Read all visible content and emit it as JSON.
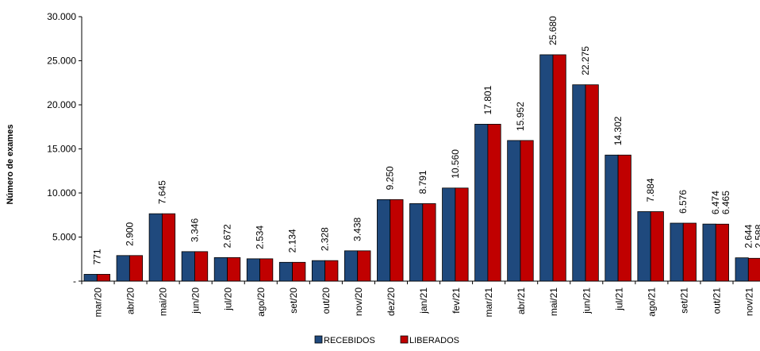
{
  "chart_data": {
    "type": "bar",
    "title": "",
    "xlabel": "",
    "ylabel": "Número de exames",
    "ylim": [
      0,
      30000
    ],
    "yticks": [
      0,
      5000,
      10000,
      15000,
      20000,
      25000,
      30000
    ],
    "ytick_labels": [
      "-",
      "5.000",
      "10.000",
      "15.000",
      "20.000",
      "25.000",
      "30.000"
    ],
    "grid": false,
    "legend_position": "bottom",
    "categories": [
      "mar/20",
      "abr/20",
      "mai/20",
      "jun/20",
      "jul/20",
      "ago/20",
      "set/20",
      "out/20",
      "nov/20",
      "dez/20",
      "jan/21",
      "fev/21",
      "mar/21",
      "abr/21",
      "mai/21",
      "jun/21",
      "jul/21",
      "ago/21",
      "set/21",
      "out/21",
      "nov/21"
    ],
    "series": [
      {
        "name": "RECEBIDOS",
        "color": "#1F497D",
        "values": [
          771,
          2900,
          7645,
          3346,
          2672,
          2534,
          2134,
          2328,
          3438,
          9250,
          8791,
          10560,
          17801,
          15952,
          25680,
          22275,
          14302,
          7884,
          6576,
          6474,
          2644
        ]
      },
      {
        "name": "LIBERADOS",
        "color": "#C00000",
        "values": [
          771,
          2900,
          7645,
          3346,
          2672,
          2534,
          2134,
          2328,
          3438,
          9250,
          8791,
          10560,
          17801,
          15952,
          25680,
          22275,
          14302,
          7884,
          6576,
          6465,
          2588
        ]
      }
    ],
    "data_labels": [
      "771",
      "2.900",
      "7.645",
      "3.346",
      "2.672",
      "2.534",
      "2.134",
      "2.328",
      "3.438",
      "9.250",
      "8.791",
      "10.560",
      "17.801",
      "15.952",
      "25.680",
      "22.275",
      "14.302",
      "7.884",
      "6.576",
      "6.474",
      "2.644"
    ],
    "second_labels": {
      "19": "6.465",
      "20": "2.588"
    }
  }
}
